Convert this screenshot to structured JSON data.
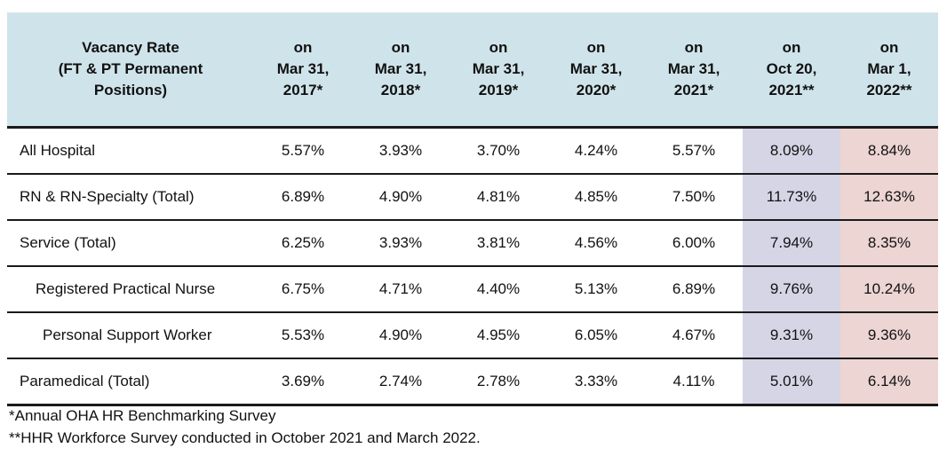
{
  "table": {
    "header": {
      "label_lines": [
        "Vacancy Rate",
        "(FT & PT Permanent",
        "Positions)"
      ],
      "columns": [
        {
          "lines": [
            "on",
            "Mar 31,",
            "2017*"
          ]
        },
        {
          "lines": [
            "on",
            "Mar 31,",
            "2018*"
          ]
        },
        {
          "lines": [
            "on",
            "Mar 31,",
            "2019*"
          ]
        },
        {
          "lines": [
            "on",
            "Mar 31,",
            "2020*"
          ]
        },
        {
          "lines": [
            "on",
            "Mar 31,",
            "2021*"
          ]
        },
        {
          "lines": [
            "on",
            "Oct 20,",
            "2021**"
          ]
        },
        {
          "lines": [
            "on",
            "Mar 1,",
            "2022**"
          ]
        }
      ]
    },
    "rows": [
      {
        "label": "All Hospital",
        "values": [
          "5.57%",
          "3.93%",
          "3.70%",
          "4.24%",
          "5.57%",
          "8.09%",
          "8.84%"
        ]
      },
      {
        "label": "RN & RN-Specialty (Total)",
        "values": [
          "6.89%",
          "4.90%",
          "4.81%",
          "4.85%",
          "7.50%",
          "11.73%",
          "12.63%"
        ]
      },
      {
        "label": "Service (Total)",
        "values": [
          "6.25%",
          "3.93%",
          "3.81%",
          "4.56%",
          "6.00%",
          "7.94%",
          "8.35%"
        ]
      },
      {
        "label": "Registered Practical Nurse",
        "values": [
          "6.75%",
          "4.71%",
          "4.40%",
          "5.13%",
          "6.89%",
          "9.76%",
          "10.24%"
        ]
      },
      {
        "label": "Personal Support Worker",
        "values": [
          "5.53%",
          "4.90%",
          "4.95%",
          "6.05%",
          "4.67%",
          "9.31%",
          "9.36%"
        ]
      },
      {
        "label": "Paramedical (Total)",
        "values": [
          "3.69%",
          "2.74%",
          "2.78%",
          "3.33%",
          "4.11%",
          "5.01%",
          "6.14%"
        ]
      }
    ],
    "colors": {
      "header_bg": "#cfe4ea",
      "oct_col_bg": "#d6d5e6",
      "mar_col_bg": "#ecd5d2"
    }
  },
  "footnotes": [
    "*Annual OHA HR Benchmarking Survey",
    "**HHR Workforce Survey conducted in October 2021 and March 2022."
  ]
}
